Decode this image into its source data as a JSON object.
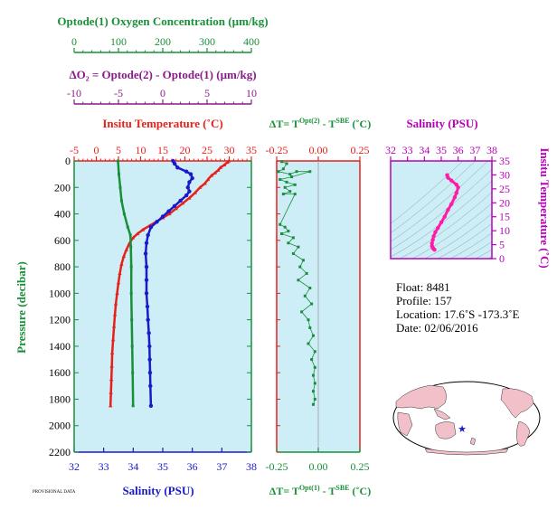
{
  "colors": {
    "oxygen": "#1a8f3a",
    "delta_o2": "#8b1a8b",
    "temperature": "#e8201a",
    "salinity": "#1a1acc",
    "delta_t": "#1a8f3a",
    "ts": "#ff1aa8",
    "ts_axis": "#b800b8",
    "pressure": "#1a8f3a",
    "panel_bg": "#cdeef6"
  },
  "labels": {
    "oxygen_title": "Optode(1) Oxygen Concentration (µm/kg)",
    "delta_o2_title": "ΔO₂ = Optode(2) - Optode(1)   (µm/kg)",
    "temperature_title": "Insitu Temperature (˚C)",
    "salinity_title": "Salinity (PSU)",
    "pressure_title": "Pressure (decibar)",
    "dt_top_title": "ΔT= T^Opt(2) - T^SBE (˚C)",
    "dt_bottom_title": "ΔT= T^Opt(1) - T^SBE (˚C)",
    "ts_top_title": "Salinity (PSU)",
    "ts_right_title": "Insitu Temperature (˚C)",
    "credit": "PROVISIONAL DATA"
  },
  "info": {
    "float": "Float:  8481",
    "profile": "Profile:  157",
    "location": "Location:  17.6˚S  -173.3˚E",
    "date": "Date:  02/06/2016"
  },
  "map": {
    "marker_lon": -173.3,
    "marker_lat": -17.6
  },
  "chart_data": [
    {
      "type": "line",
      "id": "main_profile",
      "ylabel": "Pressure (decibar)",
      "yticks": [
        0,
        200,
        400,
        600,
        800,
        1000,
        1200,
        1400,
        1600,
        1800,
        2000,
        2200
      ],
      "ylim": [
        2200,
        0
      ],
      "axes": {
        "oxygen": {
          "title": "Optode(1) Oxygen Concentration (µm/kg)",
          "range": [
            0,
            400
          ],
          "ticks": [
            "0",
            "100",
            "200",
            "300",
            "400"
          ],
          "tick_values": [
            0,
            100,
            200,
            300,
            400
          ]
        },
        "delta_o2": {
          "title": "ΔO₂ = Optode(2) - Optode(1)   (µm/kg)",
          "range": [
            -10,
            10
          ],
          "ticks": [
            "-10",
            "-5",
            "0",
            "5",
            "10"
          ],
          "tick_values": [
            -10,
            -5,
            0,
            5,
            10
          ]
        },
        "temperature": {
          "title": "Insitu Temperature (˚C)",
          "range": [
            -5,
            35
          ],
          "ticks": [
            "-5",
            "0",
            "5",
            "10",
            "15",
            "20",
            "25",
            "30",
            "35"
          ],
          "tick_values": [
            -5,
            0,
            5,
            10,
            15,
            20,
            25,
            30,
            35
          ]
        },
        "salinity": {
          "title": "Salinity (PSU)",
          "range": [
            32,
            38
          ],
          "ticks": [
            "32",
            "33",
            "34",
            "35",
            "36",
            "37",
            "38"
          ],
          "tick_values": [
            32,
            33,
            34,
            35,
            36,
            37,
            38
          ]
        }
      },
      "yticklabels": [
        "0",
        "200",
        "400",
        "600",
        "800",
        "1000",
        "1200",
        "1400",
        "1600",
        "1800",
        "2000",
        "2200"
      ],
      "series": [
        {
          "name": "Temperature",
          "axis": "temperature",
          "points": [
            [
              29.9,
              0
            ],
            [
              29.6,
              10
            ],
            [
              28.9,
              30
            ],
            [
              28.0,
              50
            ],
            [
              27.5,
              70
            ],
            [
              26.8,
              90
            ],
            [
              26.0,
              110
            ],
            [
              25.2,
              140
            ],
            [
              24.5,
              170
            ],
            [
              23.4,
              200
            ],
            [
              22.3,
              240
            ],
            [
              21.0,
              280
            ],
            [
              19.5,
              320
            ],
            [
              18.0,
              360
            ],
            [
              16.5,
              400
            ],
            [
              15.0,
              430
            ],
            [
              13.5,
              460
            ],
            [
              12.0,
              490
            ],
            [
              10.5,
              520
            ],
            [
              9.3,
              550
            ],
            [
              8.3,
              580
            ],
            [
              7.5,
              620
            ],
            [
              6.8,
              670
            ],
            [
              6.2,
              720
            ],
            [
              5.7,
              780
            ],
            [
              5.3,
              850
            ],
            [
              5.0,
              920
            ],
            [
              4.7,
              1000
            ],
            [
              4.4,
              1080
            ],
            [
              4.2,
              1160
            ],
            [
              4.0,
              1250
            ],
            [
              3.8,
              1350
            ],
            [
              3.6,
              1450
            ],
            [
              3.5,
              1550
            ],
            [
              3.4,
              1650
            ],
            [
              3.3,
              1750
            ],
            [
              3.2,
              1850
            ]
          ]
        },
        {
          "name": "Salinity",
          "axis": "salinity",
          "points": [
            [
              35.35,
              0
            ],
            [
              35.4,
              20
            ],
            [
              35.5,
              50
            ],
            [
              35.8,
              80
            ],
            [
              35.95,
              100
            ],
            [
              36.0,
              130
            ],
            [
              35.9,
              160
            ],
            [
              35.85,
              200
            ],
            [
              35.9,
              230
            ],
            [
              35.8,
              260
            ],
            [
              35.6,
              300
            ],
            [
              35.4,
              340
            ],
            [
              35.2,
              380
            ],
            [
              35.0,
              420
            ],
            [
              34.8,
              460
            ],
            [
              34.6,
              500
            ],
            [
              34.5,
              560
            ],
            [
              34.45,
              620
            ],
            [
              34.42,
              700
            ],
            [
              34.45,
              800
            ],
            [
              34.45,
              900
            ],
            [
              34.45,
              1000
            ],
            [
              34.48,
              1100
            ],
            [
              34.5,
              1200
            ],
            [
              34.53,
              1300
            ],
            [
              34.55,
              1400
            ],
            [
              34.56,
              1500
            ],
            [
              34.57,
              1600
            ],
            [
              34.58,
              1700
            ],
            [
              34.6,
              1850
            ]
          ]
        },
        {
          "name": "Oxygen",
          "axis": "oxygen",
          "points": [
            [
              99,
              0
            ],
            [
              101,
              100
            ],
            [
              104,
              200
            ],
            [
              107,
              300
            ],
            [
              113,
              400
            ],
            [
              121,
              500
            ],
            [
              127,
              560
            ],
            [
              128,
              650
            ],
            [
              129,
              800
            ],
            [
              129,
              1000
            ],
            [
              130,
              1200
            ],
            [
              131,
              1400
            ],
            [
              132,
              1600
            ],
            [
              133,
              1850
            ]
          ]
        }
      ]
    },
    {
      "type": "scatter",
      "id": "delta_t",
      "title_top": "ΔT= T^Opt(2) - T^SBE (˚C)",
      "title_bottom": "ΔT= T^Opt(1) - T^SBE (˚C)",
      "xlim": [
        -0.25,
        0.25
      ],
      "xticks": [
        "-0.25",
        "0.00",
        "0.25"
      ],
      "xtick_values": [
        -0.25,
        0.0,
        0.25
      ],
      "ylim": [
        2200,
        0
      ],
      "points": [
        [
          -0.22,
          5
        ],
        [
          -0.19,
          20
        ],
        [
          -0.21,
          60
        ],
        [
          -0.24,
          80
        ],
        [
          -0.17,
          100
        ],
        [
          -0.13,
          80
        ],
        [
          -0.05,
          80
        ],
        [
          -0.16,
          120
        ],
        [
          -0.23,
          140
        ],
        [
          -0.19,
          160
        ],
        [
          -0.14,
          180
        ],
        [
          -0.2,
          200
        ],
        [
          -0.17,
          230
        ],
        [
          -0.21,
          250
        ],
        [
          -0.14,
          250
        ],
        [
          -0.23,
          480
        ],
        [
          -0.2,
          500
        ],
        [
          -0.18,
          530
        ],
        [
          -0.22,
          550
        ],
        [
          -0.15,
          580
        ],
        [
          -0.18,
          620
        ],
        [
          -0.12,
          650
        ],
        [
          -0.15,
          700
        ],
        [
          -0.09,
          750
        ],
        [
          -0.11,
          800
        ],
        [
          -0.07,
          850
        ],
        [
          -0.12,
          900
        ],
        [
          -0.05,
          960
        ],
        [
          -0.08,
          1020
        ],
        [
          -0.04,
          1080
        ],
        [
          -0.1,
          1140
        ],
        [
          -0.06,
          1200
        ],
        [
          -0.05,
          1260
        ],
        [
          -0.03,
          1320
        ],
        [
          -0.06,
          1380
        ],
        [
          -0.02,
          1440
        ],
        [
          -0.04,
          1500
        ],
        [
          -0.02,
          1560
        ],
        [
          -0.03,
          1620
        ],
        [
          -0.02,
          1680
        ],
        [
          -0.03,
          1740
        ],
        [
          -0.02,
          1800
        ],
        [
          -0.03,
          1840
        ]
      ]
    },
    {
      "type": "line",
      "id": "ts_diagram",
      "xlabel": "Salinity (PSU)",
      "ylabel": "Insitu Temperature (˚C)",
      "xlim": [
        32,
        38
      ],
      "ylim": [
        0,
        35
      ],
      "xticks": [
        "32",
        "33",
        "34",
        "35",
        "36",
        "37",
        "38"
      ],
      "xtick_values": [
        32,
        33,
        34,
        35,
        36,
        37,
        38
      ],
      "yticks": [
        "0",
        "5",
        "10",
        "15",
        "20",
        "25",
        "30",
        "35"
      ],
      "ytick_values": [
        0,
        5,
        10,
        15,
        20,
        25,
        30,
        35
      ],
      "points": [
        [
          35.35,
          29.9
        ],
        [
          35.4,
          29.0
        ],
        [
          35.6,
          28.0
        ],
        [
          35.9,
          26.5
        ],
        [
          36.0,
          25.5
        ],
        [
          35.9,
          23.5
        ],
        [
          35.8,
          22.0
        ],
        [
          35.6,
          19.5
        ],
        [
          35.4,
          17.5
        ],
        [
          35.2,
          15.0
        ],
        [
          35.0,
          13.0
        ],
        [
          34.8,
          11.0
        ],
        [
          34.65,
          9.5
        ],
        [
          34.55,
          8.0
        ],
        [
          34.5,
          6.8
        ],
        [
          34.45,
          5.5
        ],
        [
          34.45,
          4.5
        ],
        [
          34.5,
          3.8
        ],
        [
          34.55,
          3.5
        ],
        [
          34.6,
          3.2
        ]
      ]
    }
  ]
}
